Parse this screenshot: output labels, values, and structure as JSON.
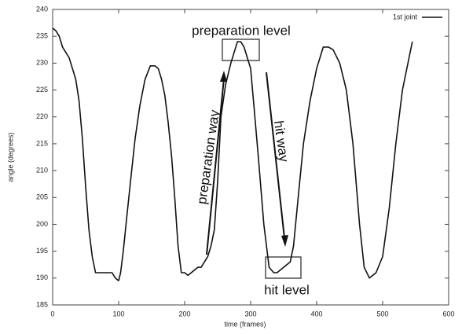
{
  "chart_data": {
    "type": "line",
    "x_label": "time (frames)",
    "y_label": "angle (degrees)",
    "xlim": [
      0,
      600
    ],
    "ylim": [
      185,
      240
    ],
    "xticks": [
      0,
      100,
      200,
      300,
      400,
      500,
      600
    ],
    "yticks": [
      185,
      190,
      195,
      200,
      205,
      210,
      215,
      220,
      225,
      230,
      235,
      240
    ],
    "legend": "upper right",
    "annotations": [
      "preparation level",
      "preparation way",
      "hit way",
      "hit level"
    ],
    "series": [
      {
        "name": "1st joint",
        "color": "#111111",
        "x": [
          0,
          5,
          10,
          15,
          20,
          25,
          30,
          35,
          40,
          45,
          50,
          55,
          60,
          65,
          70,
          80,
          90,
          95,
          100,
          103,
          107,
          112,
          118,
          125,
          132,
          140,
          148,
          155,
          160,
          165,
          170,
          175,
          180,
          185,
          190,
          195,
          200,
          205,
          210,
          220,
          225,
          230,
          235,
          240,
          245,
          250,
          255,
          262,
          270,
          275,
          280,
          285,
          290,
          295,
          300,
          305,
          312,
          320,
          328,
          335,
          340,
          350,
          360,
          365,
          372,
          380,
          390,
          400,
          410,
          418,
          425,
          435,
          445,
          455,
          465,
          472,
          480,
          490,
          500,
          510,
          520,
          530,
          540,
          545
        ],
        "values": [
          236.5,
          236,
          235,
          233,
          232,
          231,
          229,
          227,
          223,
          216,
          207,
          199,
          194,
          191,
          191,
          191,
          191,
          190,
          189.5,
          191,
          195,
          201,
          208,
          216,
          222,
          227,
          229.5,
          229.5,
          229,
          227,
          224,
          219,
          213,
          205,
          196,
          191,
          191,
          190.5,
          191,
          192,
          192,
          193,
          194,
          196,
          199,
          208,
          220,
          226,
          230,
          232,
          234,
          234,
          233,
          231,
          229,
          222,
          212,
          200,
          192,
          191,
          191,
          192,
          193,
          196,
          205,
          215,
          223,
          229,
          233,
          233,
          232.5,
          230,
          225,
          215,
          200,
          192,
          190,
          191,
          194,
          203,
          215,
          225,
          231,
          234
        ]
      }
    ]
  }
}
